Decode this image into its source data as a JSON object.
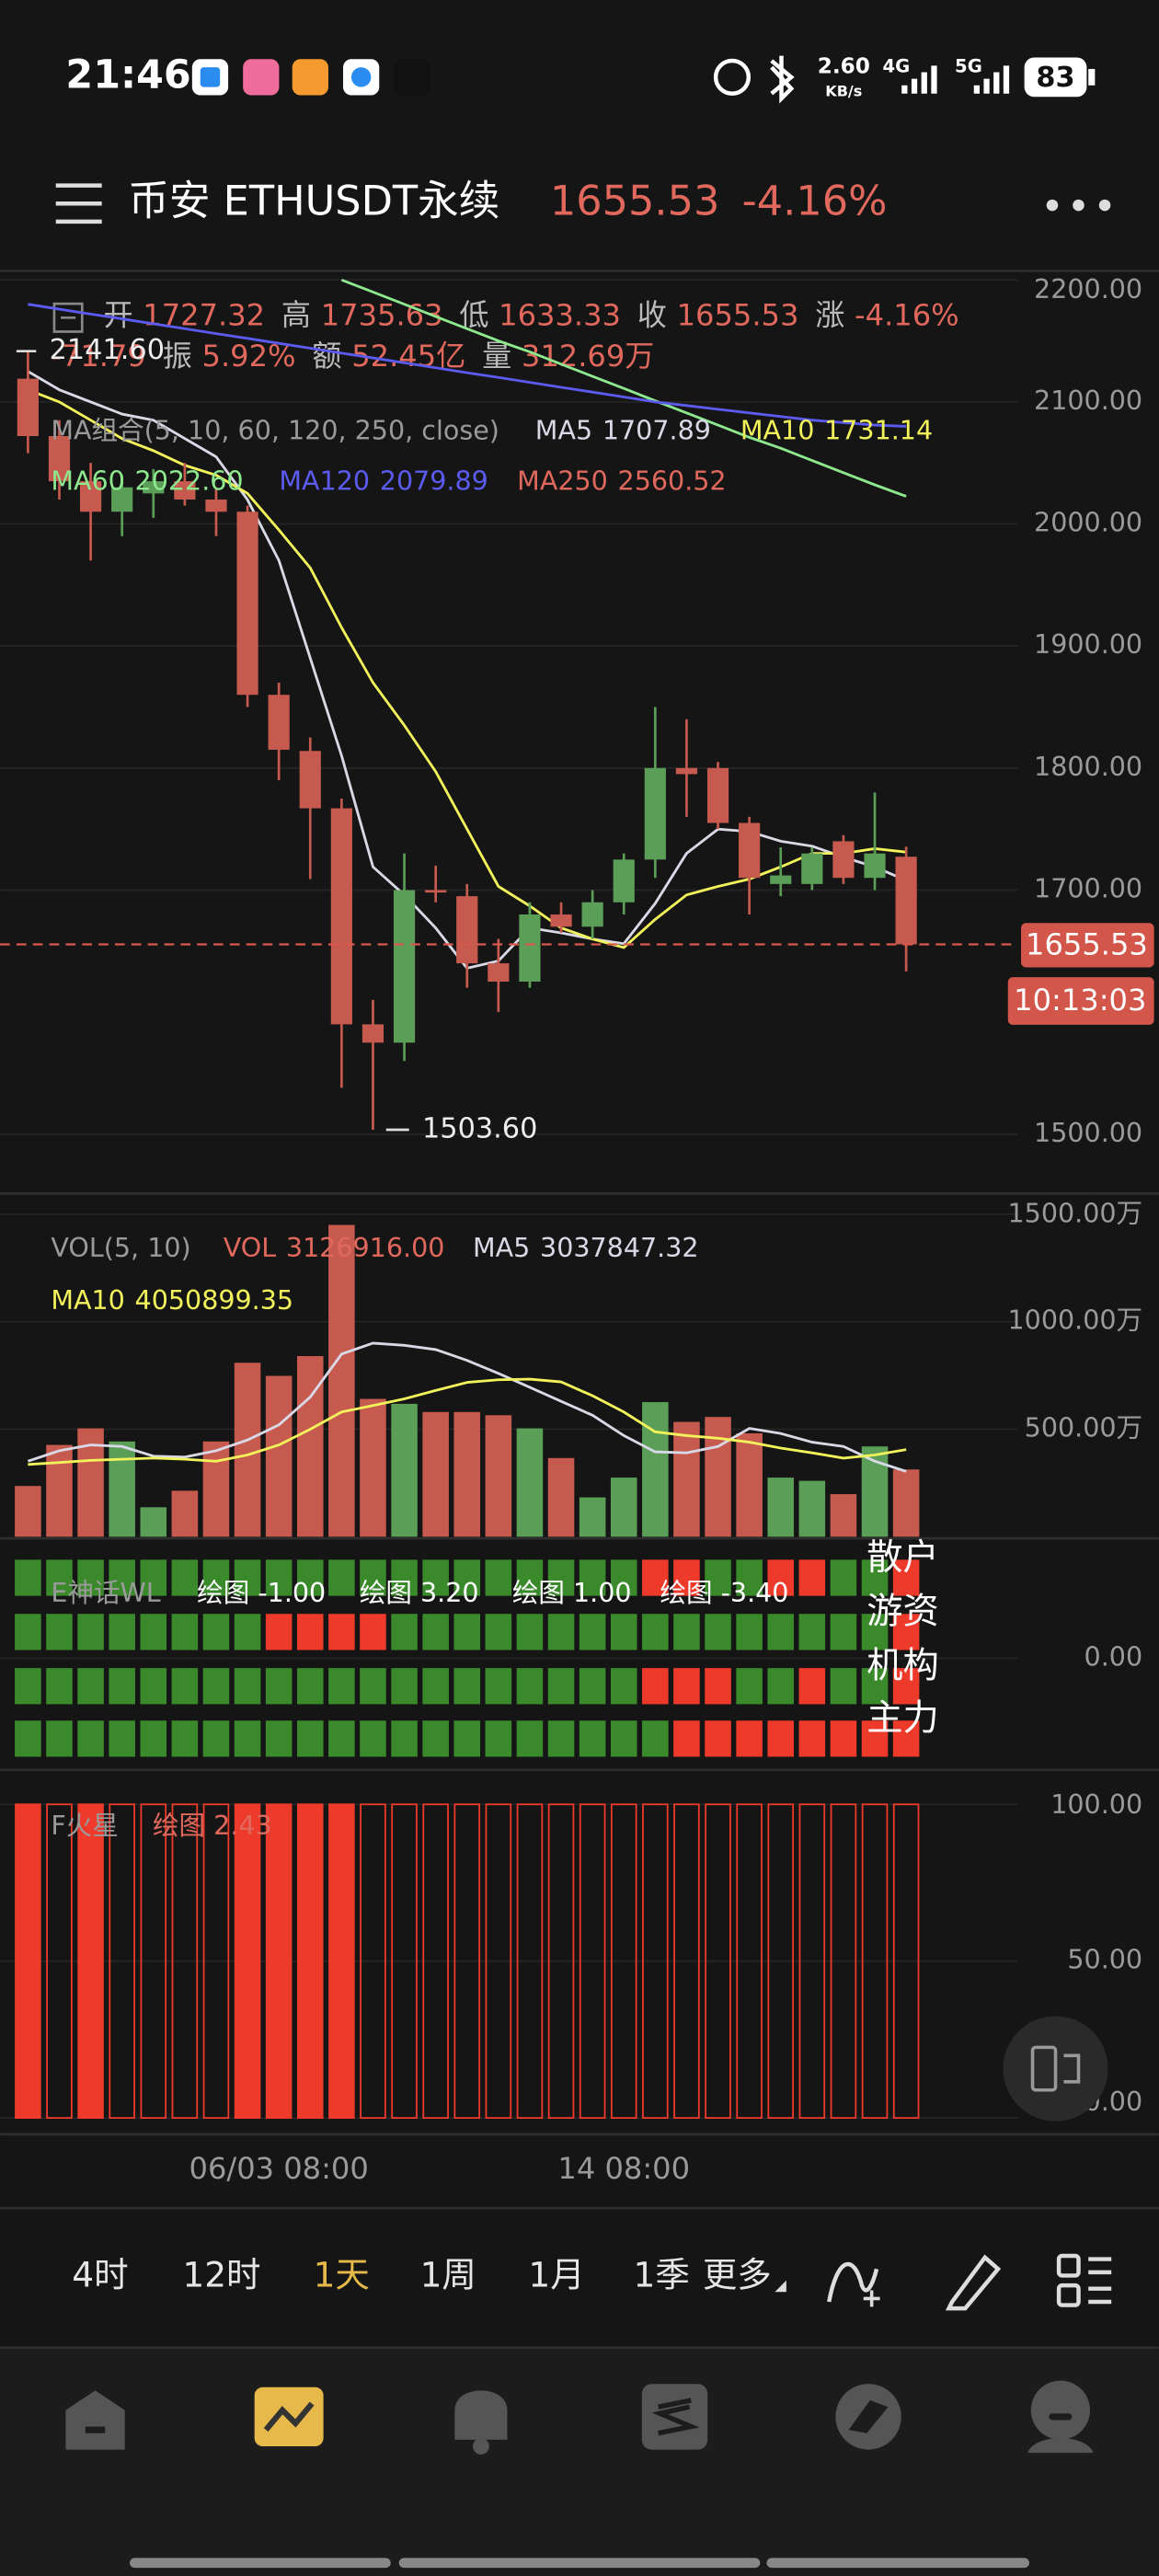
{
  "status_bar": {
    "time": "21:46",
    "net_speed": "2.60",
    "net_unit": "KB/s",
    "signal1": "4G",
    "signal2": "5G",
    "battery": "83"
  },
  "header": {
    "title": "币安 ETHUSDT永续",
    "price": "1655.53",
    "change": "-4.16%"
  },
  "chart_data": [
    {
      "type": "candlestick",
      "info": [
        {
          "name": "开",
          "value": "1727.32"
        },
        {
          "name": "高",
          "value": "1735.63"
        },
        {
          "name": "低",
          "value": "1633.33"
        },
        {
          "name": "收",
          "value": "1655.53"
        },
        {
          "name": "涨",
          "value": "-4.16%"
        }
      ],
      "info2_lead": "-71.79",
      "info2": [
        {
          "name": "振",
          "value": "5.92%"
        },
        {
          "name": "额",
          "value": "52.45亿"
        },
        {
          "name": "量",
          "value": "312.69万"
        }
      ],
      "legend_title": "MA组合(5, 10, 60, 120, 250, close)",
      "categories": [
        null,
        null,
        null,
        null,
        null,
        null,
        null,
        null,
        "06/03 08:00",
        null,
        null,
        null,
        null,
        null,
        null,
        null,
        null,
        null,
        null,
        "14 08:00",
        null,
        null,
        null,
        null,
        null,
        null,
        null,
        null,
        null
      ],
      "ylim": [
        1454,
        2206
      ],
      "yticks": [
        {
          "value": 2200,
          "label": "2200.00"
        },
        {
          "value": 2100,
          "label": "2100.00"
        },
        {
          "value": 2000,
          "label": "2000.00"
        },
        {
          "value": 1900,
          "label": "1900.00"
        },
        {
          "value": 1800,
          "label": "1800.00"
        },
        {
          "value": 1700,
          "label": "1700.00"
        },
        {
          "value": 1500,
          "label": "1500.00"
        }
      ],
      "up_color": "#5a9e57",
      "down_color": "#c65a4f",
      "open": [
        2119,
        2072,
        2035,
        2010,
        2025,
        2035,
        2020,
        2010,
        1860,
        1814,
        1767,
        1590,
        1575,
        1700,
        1695,
        1640,
        1625,
        1680,
        1670,
        1690,
        1725,
        1800,
        1800,
        1755,
        1705,
        1705,
        1740,
        1710,
        1727.32
      ],
      "high": [
        2141.6,
        2085,
        2050,
        2040,
        2045,
        2050,
        2030,
        2015,
        1870,
        1825,
        1775,
        1610,
        1730,
        1720,
        1705,
        1660,
        1690,
        1690,
        1700,
        1730,
        1850,
        1840,
        1805,
        1760,
        1735,
        1735,
        1745,
        1780,
        1735.63
      ],
      "low": [
        2058,
        2020,
        1970,
        1990,
        2005,
        2015,
        1990,
        1850,
        1790,
        1709,
        1538,
        1503.6,
        1560,
        1690,
        1620,
        1600,
        1620,
        1665,
        1660,
        1680,
        1710,
        1760,
        1750,
        1680,
        1695,
        1700,
        1705,
        1700,
        1633.33
      ],
      "close": [
        2072,
        2035,
        2010,
        2030,
        2035,
        2020,
        2010,
        1860,
        1815,
        1767,
        1590,
        1575,
        1700,
        1698,
        1640,
        1625,
        1680,
        1670,
        1690,
        1725,
        1800,
        1795,
        1755,
        1710,
        1712,
        1730,
        1710,
        1730,
        1655.53
      ],
      "high_label": "2141.60",
      "low_label": "1503.60",
      "last_price": {
        "value": 1655.53,
        "label": "1655.53"
      },
      "countdown": "10:13:03",
      "series": [
        {
          "name": "MA5",
          "legend_value": "1707.89",
          "color": "#d8d8e6",
          "values": [
            2125,
            2110,
            2100,
            2090,
            2085,
            2070,
            2055,
            2020,
            1970,
            1890,
            1810,
            1719,
            1696,
            1669,
            1636,
            1642,
            1669,
            1665,
            1660,
            1656,
            1689,
            1730,
            1750,
            1748,
            1740,
            1736,
            1727,
            1719,
            1707.89
          ]
        },
        {
          "name": "MA10",
          "legend_value": "1731.14",
          "color": "#f2f25a",
          "values": [
            2110,
            2100,
            2085,
            2070,
            2060,
            2048,
            2040,
            2025,
            1995,
            1964,
            1915,
            1870,
            1835,
            1797,
            1750,
            1703,
            1687,
            1669,
            1660,
            1653,
            1676,
            1696,
            1703,
            1709,
            1719,
            1730,
            1730,
            1734,
            1731.14
          ]
        },
        {
          "name": "MA60",
          "legend_value": "2022.60",
          "color": "#8ee88e",
          "values": [
            null,
            null,
            null,
            null,
            null,
            null,
            null,
            null,
            null,
            null,
            2200,
            2190,
            2180,
            2170,
            2160,
            2150,
            2141,
            2131,
            2121,
            2111,
            2101,
            2091,
            2081,
            2071,
            2062,
            2052,
            2042,
            2032,
            2022.6
          ]
        },
        {
          "name": "MA120",
          "legend_value": "2079.89",
          "color": "#5b5bf0",
          "values": [
            2180,
            2176,
            2172,
            2168,
            2164,
            2160,
            2156,
            2152,
            2148,
            2144,
            2140,
            2136,
            2132,
            2128,
            2124,
            2120,
            2116,
            2112,
            2108,
            2104,
            2100,
            2097,
            2094,
            2091,
            2088,
            2085,
            2083,
            2081,
            2079.89
          ]
        },
        {
          "name": "MA250",
          "legend_value": "2560.52",
          "color": "#e0685c"
        }
      ]
    },
    {
      "type": "bar",
      "legend_title": "VOL(5, 10)",
      "bars_name": "VOL",
      "bars_legend_value": "3126916.00",
      "ylim": [
        0,
        1588
      ],
      "yticks": [
        {
          "value": 1500,
          "label": "1500.00万"
        },
        {
          "value": 1000,
          "label": "1000.00万"
        },
        {
          "value": 500,
          "label": "500.00万"
        }
      ],
      "values": [
        236,
        427,
        504,
        443,
        137,
        214,
        443,
        809,
        748,
        840,
        1450,
        641,
        618,
        580,
        580,
        565,
        504,
        366,
        183,
        275,
        626,
        534,
        557,
        481,
        275,
        260,
        198,
        420,
        312.69
      ],
      "series": [
        {
          "name": "MA5",
          "legend_value": "3037847.32",
          "color": "#d8d8e6",
          "values": [
            351,
            400,
            427,
            420,
            375,
            370,
            400,
            450,
            520,
            650,
            850,
            900,
            890,
            870,
            820,
            760,
            695,
            630,
            565,
            470,
            395,
            390,
            420,
            504,
            480,
            440,
            420,
            351,
            303.78
          ]
        },
        {
          "name": "MA10",
          "legend_value": "4050899.35",
          "color": "#f2f25a",
          "values": [
            336,
            345,
            355,
            360,
            366,
            360,
            351,
            380,
            427,
            500,
            580,
            610,
            641,
            680,
            718,
            730,
            733,
            720,
            656,
            580,
            488,
            470,
            458,
            440,
            412,
            390,
            366,
            380,
            405.09
          ]
        }
      ]
    },
    {
      "type": "grid",
      "title": "E神话WL",
      "labels": [
        "绘图 -1.00",
        "绘图 3.20",
        "绘图 1.00",
        "绘图 -3.40"
      ],
      "on_color": "#ee3a2a",
      "off_color": "#3a8a2c",
      "ylim": [
        -1,
        1
      ],
      "yticks": [
        {
          "value": 0,
          "label": "0.00"
        }
      ],
      "rows": [
        {
          "name": "散户",
          "values": [
            0,
            0,
            0,
            0,
            0,
            0,
            0,
            0,
            0,
            0,
            0,
            0,
            0,
            0,
            0,
            0,
            0,
            0,
            0,
            0,
            1,
            1,
            0,
            0,
            1,
            1,
            0,
            0,
            1
          ]
        },
        {
          "name": "游资",
          "values": [
            0,
            0,
            0,
            0,
            0,
            0,
            0,
            0,
            1,
            1,
            1,
            1,
            0,
            0,
            0,
            0,
            0,
            0,
            0,
            0,
            0,
            0,
            0,
            0,
            0,
            0,
            0,
            0,
            1
          ]
        },
        {
          "name": "机构",
          "values": [
            0,
            0,
            0,
            0,
            0,
            0,
            0,
            0,
            0,
            0,
            0,
            0,
            0,
            0,
            0,
            0,
            0,
            0,
            0,
            0,
            1,
            1,
            1,
            0,
            0,
            1,
            0,
            0,
            1
          ]
        },
        {
          "name": "主力",
          "values": [
            0,
            0,
            0,
            0,
            0,
            0,
            0,
            0,
            0,
            0,
            0,
            0,
            0,
            0,
            0,
            0,
            0,
            0,
            0,
            0,
            0,
            1,
            1,
            1,
            1,
            1,
            1,
            1,
            1
          ]
        }
      ]
    },
    {
      "type": "bar",
      "title": "F火星",
      "label": "绘图 2.43",
      "color": "#ee3a2a",
      "ylim": [
        0,
        100
      ],
      "yticks": [
        {
          "value": 100,
          "label": "100.00"
        },
        {
          "value": 50,
          "label": "50.00"
        },
        {
          "value": 0,
          "label": "0.00"
        }
      ],
      "values": [
        100,
        100,
        100,
        100,
        100,
        100,
        100,
        100,
        100,
        100,
        100,
        100,
        100,
        100,
        100,
        100,
        100,
        100,
        100,
        100,
        100,
        100,
        100,
        100,
        100,
        100,
        100,
        100,
        100
      ],
      "filled": [
        true,
        false,
        true,
        false,
        false,
        false,
        false,
        true,
        true,
        true,
        true,
        false,
        false,
        false,
        false,
        false,
        false,
        false,
        false,
        false,
        false,
        false,
        false,
        false,
        false,
        false,
        false,
        false,
        false
      ]
    }
  ],
  "timeframes": [
    "4时",
    "12时",
    "1天",
    "1周",
    "1月",
    "1季",
    "更多"
  ],
  "active_timeframe": 2,
  "nav": [
    "自选",
    "图表",
    "提醒",
    "交易",
    "发现",
    "我的"
  ],
  "active_nav": 1
}
